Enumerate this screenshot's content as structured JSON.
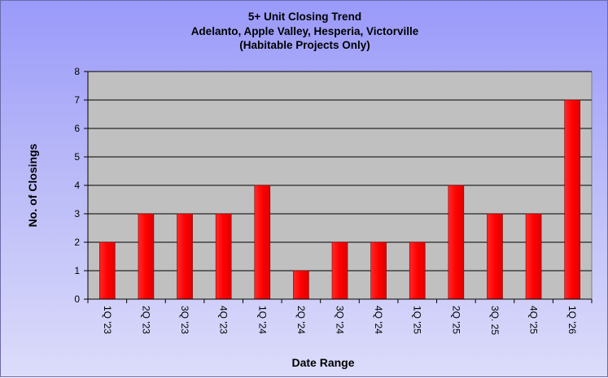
{
  "chart_data": {
    "type": "bar",
    "title_lines": [
      "5+ Unit Closing Trend",
      "Adelanto, Apple Valley, Hesperia, Victorville",
      "(Habitable Projects Only)"
    ],
    "xlabel": "Date Range",
    "ylabel": "No. of Closings",
    "categories": [
      "1Q '23",
      "2Q '23",
      "3Q '23",
      "4Q '23",
      "1Q '24",
      "2Q '24",
      "3Q '24",
      "4Q '24",
      "1Q '25",
      "2Q '25",
      "3Q. 25",
      "4Q '25",
      "1Q '26"
    ],
    "values": [
      2,
      3,
      3,
      3,
      4,
      1,
      2,
      2,
      2,
      4,
      3,
      3,
      7
    ],
    "yticks": [
      "0",
      "1",
      "2",
      "3",
      "4",
      "5",
      "6",
      "7",
      "8"
    ],
    "ylim": [
      0,
      8
    ],
    "grid": true,
    "legend": "none",
    "colors": {
      "bar": "#ff0000",
      "plot_background": "#c0c0c0",
      "gridline": "#000000"
    }
  }
}
